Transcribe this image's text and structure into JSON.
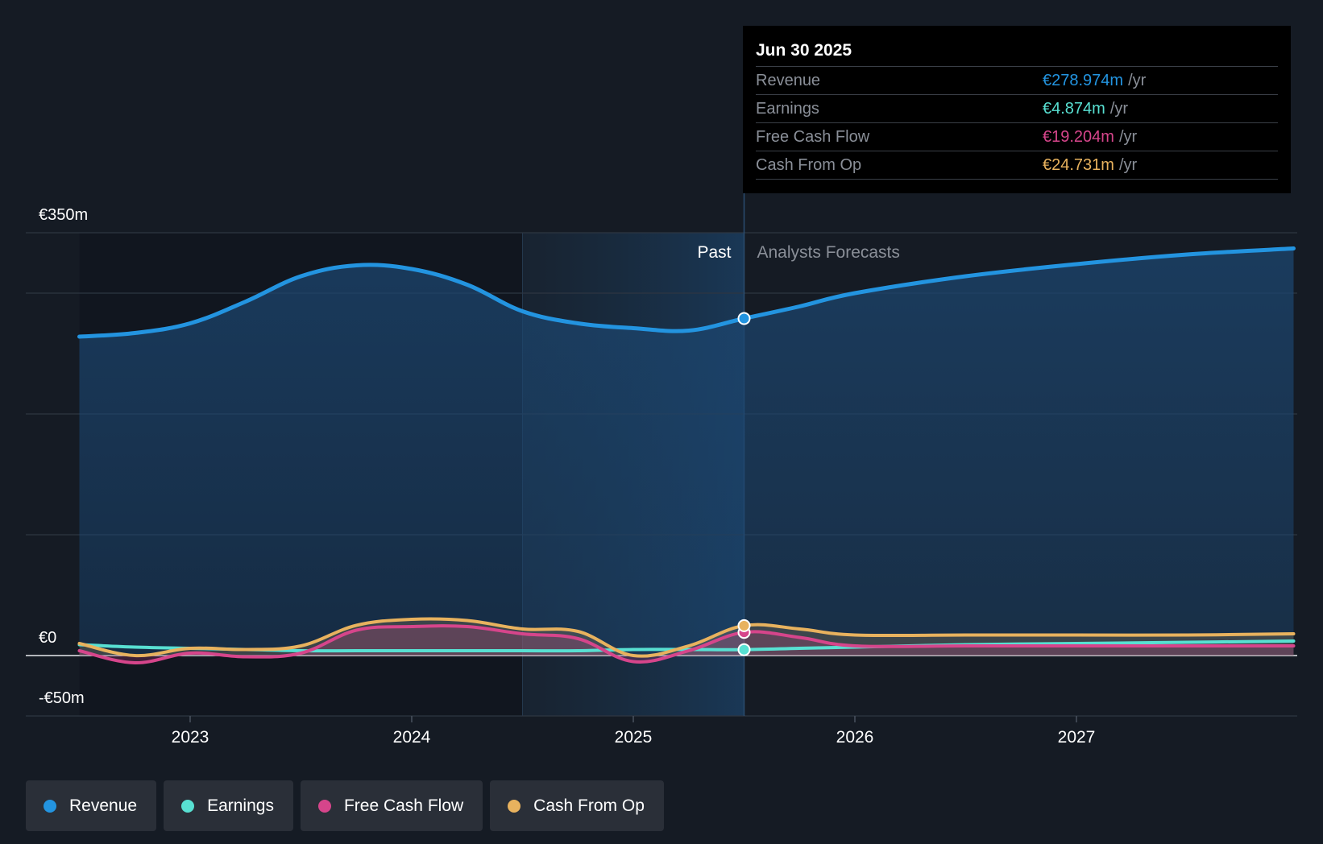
{
  "chart_data": {
    "type": "line",
    "title": "",
    "xlabel": "",
    "ylabel": "",
    "ylim": [
      -50,
      350
    ],
    "y_tick_labels": [
      {
        "value": 350,
        "label": "€350m"
      },
      {
        "value": 0,
        "label": "€0"
      },
      {
        "value": -50,
        "label": "-€50m"
      }
    ],
    "x_ticks": [
      2023,
      2024,
      2025,
      2026,
      2027
    ],
    "x_tick_labels": [
      "2023",
      "2024",
      "2025",
      "2026",
      "2027"
    ],
    "x_range": [
      2022.25,
      2027.98
    ],
    "past_label": "Past",
    "forecast_label": "Analysts Forecasts",
    "past_end": 2025.5,
    "highlight_start": 2024.5,
    "series": [
      {
        "name": "Revenue",
        "color": "#2394e0",
        "x": [
          2022.5,
          2022.75,
          2023.0,
          2023.25,
          2023.5,
          2023.75,
          2024.0,
          2024.25,
          2024.5,
          2024.75,
          2025.0,
          2025.25,
          2025.5,
          2025.75,
          2026.0,
          2026.5,
          2027.0,
          2027.5,
          2027.98
        ],
        "values": [
          264,
          267,
          275,
          293,
          314,
          323,
          320,
          307,
          285,
          275,
          271,
          269,
          279,
          289,
          300,
          314,
          324,
          332,
          337
        ]
      },
      {
        "name": "Earnings",
        "color": "#58e0d2",
        "x": [
          2022.5,
          2022.75,
          2023.0,
          2023.25,
          2023.5,
          2023.75,
          2024.0,
          2024.25,
          2024.5,
          2024.75,
          2025.0,
          2025.25,
          2025.5,
          2025.75,
          2026.0,
          2026.5,
          2027.0,
          2027.5,
          2027.98
        ],
        "values": [
          9,
          7,
          6,
          5,
          4,
          4,
          4,
          4,
          4,
          4,
          5,
          5,
          4.874,
          6,
          7,
          9,
          10,
          11,
          12
        ]
      },
      {
        "name": "Free Cash Flow",
        "color": "#d6458b",
        "x": [
          2022.5,
          2022.75,
          2023.0,
          2023.25,
          2023.5,
          2023.75,
          2024.0,
          2024.25,
          2024.5,
          2024.75,
          2025.0,
          2025.25,
          2025.5,
          2025.75,
          2026.0,
          2026.5,
          2027.0,
          2027.5,
          2027.98
        ],
        "values": [
          4,
          -6,
          2,
          -1,
          2,
          21,
          24,
          24,
          18,
          14,
          -5,
          4,
          19.204,
          15,
          8,
          8,
          8,
          8,
          8
        ]
      },
      {
        "name": "Cash From Op",
        "color": "#e8b25e",
        "x": [
          2022.5,
          2022.75,
          2023.0,
          2023.25,
          2023.5,
          2023.75,
          2024.0,
          2024.25,
          2024.5,
          2024.75,
          2025.0,
          2025.25,
          2025.5,
          2025.75,
          2026.0,
          2026.5,
          2027.0,
          2027.5,
          2027.98
        ],
        "values": [
          10,
          0,
          6,
          5,
          8,
          25,
          30,
          29,
          22,
          20,
          0,
          8,
          24.731,
          22,
          17,
          17,
          17,
          17,
          18
        ]
      }
    ]
  },
  "tooltip": {
    "date": "Jun 30 2025",
    "rows": [
      {
        "label": "Revenue",
        "value": "€278.974m",
        "unit": "/yr",
        "color": "#2394e0"
      },
      {
        "label": "Earnings",
        "value": "€4.874m",
        "unit": "/yr",
        "color": "#58e0d2"
      },
      {
        "label": "Free Cash Flow",
        "value": "€19.204m",
        "unit": "/yr",
        "color": "#d6458b"
      },
      {
        "label": "Cash From Op",
        "value": "€24.731m",
        "unit": "/yr",
        "color": "#e8b25e"
      }
    ]
  },
  "legend": [
    {
      "label": "Revenue",
      "color": "#2394e0"
    },
    {
      "label": "Earnings",
      "color": "#58e0d2"
    },
    {
      "label": "Free Cash Flow",
      "color": "#d6458b"
    },
    {
      "label": "Cash From Op",
      "color": "#e8b25e"
    }
  ]
}
